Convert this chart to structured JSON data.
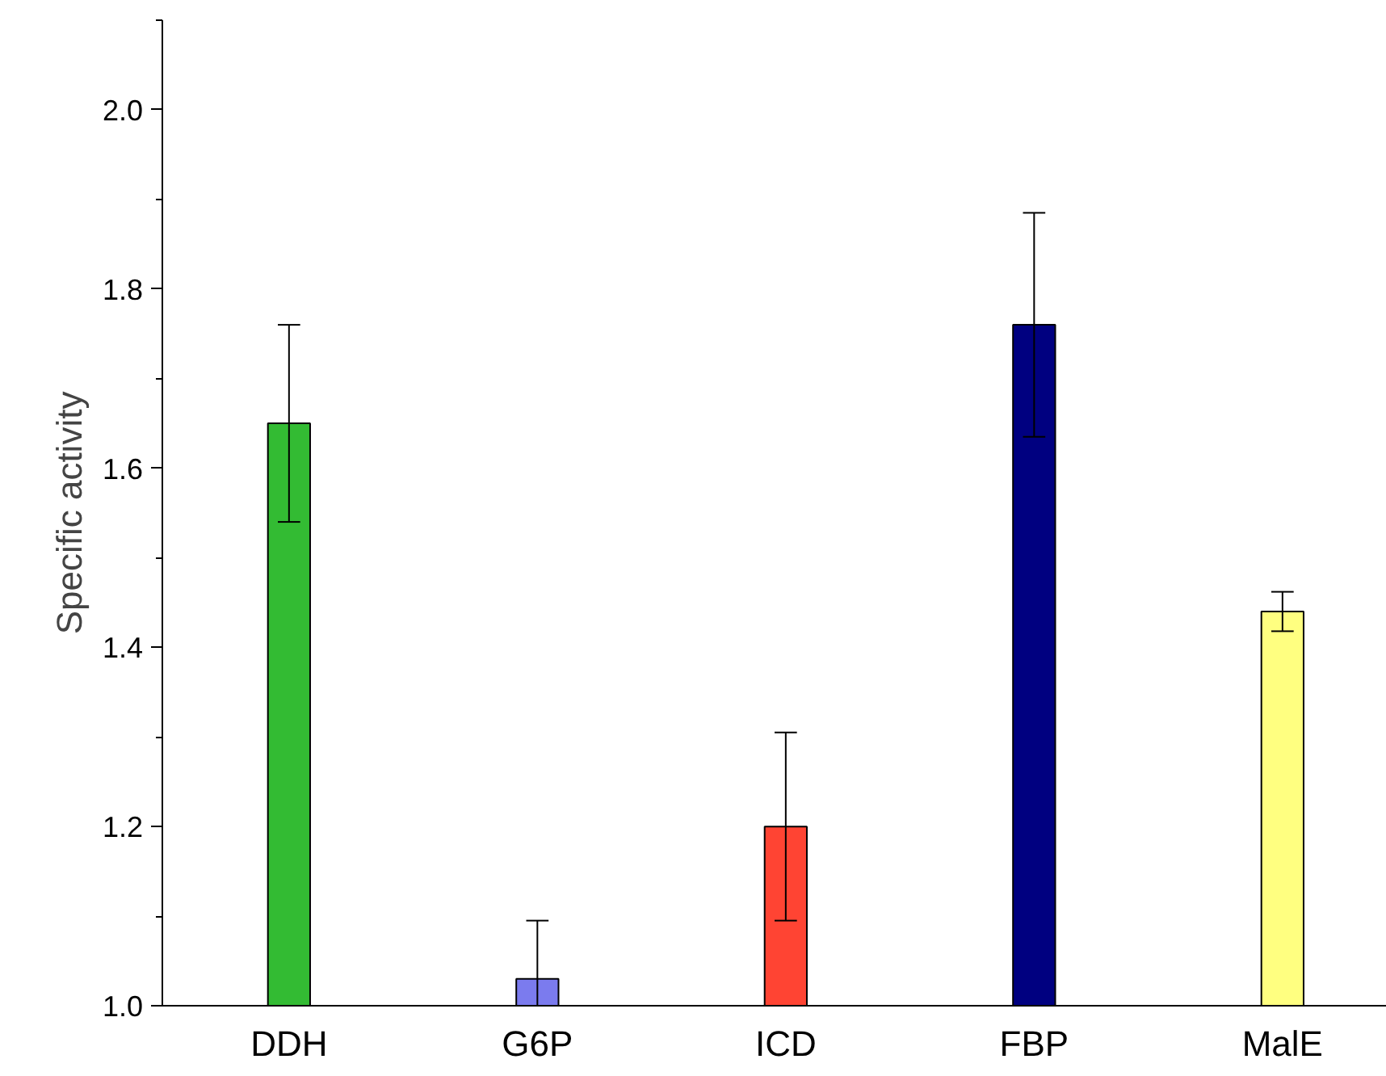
{
  "chart_data": {
    "type": "bar",
    "ylabel": "Specific activity",
    "categories": [
      "DDH",
      "G6P",
      "ICD",
      "FBP",
      "MalE"
    ],
    "values": [
      1.65,
      1.03,
      1.2,
      1.76,
      1.44
    ],
    "errors": [
      0.11,
      0.065,
      0.105,
      0.125,
      0.022
    ],
    "colors": [
      "#33bb33",
      "#7b7bee",
      "#ff4433",
      "#000080",
      "#ffff80"
    ],
    "ylim": [
      1.0,
      2.1
    ],
    "yticks": [
      {
        "value": 1.0,
        "label": "1.0"
      },
      {
        "value": 1.2,
        "label": "1.2"
      },
      {
        "value": 1.4,
        "label": "1.4"
      },
      {
        "value": 1.6,
        "label": "1.6"
      },
      {
        "value": 1.8,
        "label": "1.8"
      },
      {
        "value": 2.0,
        "label": "2.0"
      }
    ],
    "grid": false
  }
}
